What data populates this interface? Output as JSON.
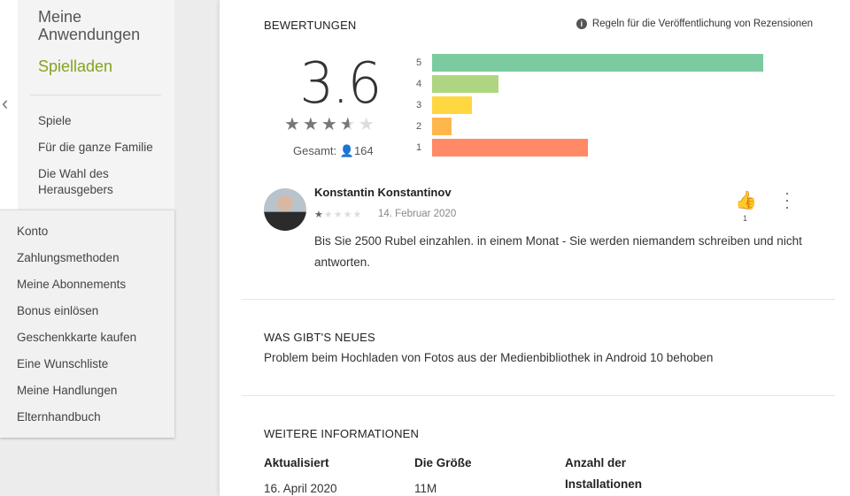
{
  "sidebar": {
    "title_line1": "Meine",
    "title_line2": "Anwendungen",
    "store": "Spielladen",
    "categories": [
      "Spiele",
      "Für die ganze Familie",
      "Die Wahl des",
      "Herausgebers"
    ]
  },
  "account_menu": [
    "Konto",
    "Zahlungsmethoden",
    "Meine Abonnements",
    "Bonus einlösen",
    "Geschenkkarte kaufen",
    "Eine Wunschliste",
    "Meine Handlungen",
    "Elternhandbuch"
  ],
  "ratings": {
    "heading": "BEWERTUNGEN",
    "rules_link": "Regeln für die Veröffentlichung von Rezensionen",
    "score": "3.6",
    "stars": 3.5,
    "total_label": "Gesamt:",
    "total": "164",
    "histogram": [
      {
        "label": "5",
        "relative": 1.0,
        "color": "#7ccba0"
      },
      {
        "label": "4",
        "relative": 0.2,
        "color": "#aed581"
      },
      {
        "label": "3",
        "relative": 0.12,
        "color": "#ffd740"
      },
      {
        "label": "2",
        "relative": 0.06,
        "color": "#ffb74d"
      },
      {
        "label": "1",
        "relative": 0.47,
        "color": "#ff8a65"
      }
    ]
  },
  "review": {
    "author": "Konstantin Konstantinov",
    "stars": 1,
    "date": "14. Februar 2020",
    "text": "Bis Sie 2500 Rubel einzahlen. in einem Monat - Sie werden niemandem schreiben und nicht antworten.",
    "likes": "1"
  },
  "whats_new": {
    "heading": "WAS GIBT'S NEUES",
    "text": "Problem beim Hochladen von Fotos aus der Medienbibliothek in Android 10 behoben"
  },
  "more_info": {
    "heading": "WEITERE INFORMATIONEN",
    "updated_label": "Aktualisiert",
    "updated": "16. April 2020",
    "size_label": "Die Größe",
    "size": "11M",
    "installs_label_1": "Anzahl der",
    "installs_label_2": "Installationen"
  }
}
